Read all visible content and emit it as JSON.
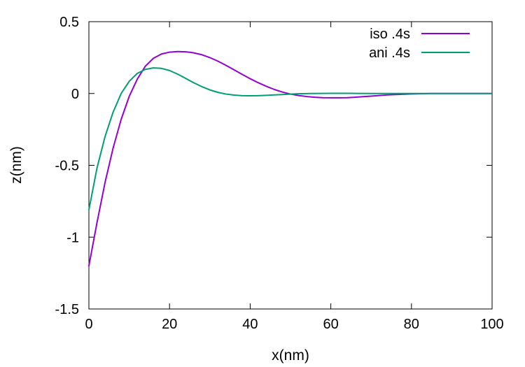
{
  "chart_data": {
    "type": "line",
    "xlabel": "x(nm)",
    "ylabel": "z(nm)",
    "xlim": [
      0,
      100
    ],
    "ylim": [
      -1.5,
      0.5
    ],
    "xticks": [
      0,
      20,
      40,
      60,
      80,
      100
    ],
    "yticks": [
      -1.5,
      -1,
      -0.5,
      0,
      0.5
    ],
    "xtick_labels": [
      "0",
      "20",
      "40",
      "60",
      "80",
      "100"
    ],
    "ytick_labels": [
      "-1.5",
      "-1",
      "-0.5",
      "0",
      "0.5"
    ],
    "grid": false,
    "legend_position": "top-right",
    "series": [
      {
        "name": "iso .4s",
        "color": "#9400d3",
        "x": [
          0,
          2,
          4,
          6,
          8,
          10,
          12,
          14,
          16,
          18,
          20,
          22,
          24,
          25,
          26,
          28,
          30,
          32,
          34,
          36,
          38,
          40,
          42,
          44,
          46,
          48,
          50,
          52,
          54,
          56,
          58,
          60,
          62,
          64,
          66,
          68,
          70,
          72,
          74,
          76,
          80,
          85,
          90,
          100
        ],
        "y": [
          -1.2,
          -0.9,
          -0.62,
          -0.38,
          -0.18,
          -0.02,
          0.1,
          0.19,
          0.245,
          0.275,
          0.288,
          0.292,
          0.29,
          0.287,
          0.283,
          0.27,
          0.25,
          0.225,
          0.196,
          0.165,
          0.133,
          0.103,
          0.075,
          0.05,
          0.028,
          0.01,
          -0.004,
          -0.014,
          -0.021,
          -0.026,
          -0.029,
          -0.03,
          -0.03,
          -0.029,
          -0.026,
          -0.022,
          -0.018,
          -0.014,
          -0.01,
          -0.007,
          -0.003,
          0.0,
          0.0,
          0.0
        ]
      },
      {
        "name": "ani .4s",
        "color": "#009e73",
        "x": [
          0,
          2,
          4,
          6,
          8,
          10,
          12,
          14,
          16,
          18,
          20,
          22,
          24,
          26,
          28,
          30,
          32,
          34,
          36,
          38,
          40,
          42,
          44,
          46,
          48,
          50,
          52,
          55,
          60,
          65,
          70,
          80,
          90,
          100
        ],
        "y": [
          -0.81,
          -0.52,
          -0.3,
          -0.13,
          0.0,
          0.085,
          0.14,
          0.168,
          0.178,
          0.175,
          0.16,
          0.135,
          0.105,
          0.075,
          0.048,
          0.025,
          0.008,
          -0.004,
          -0.011,
          -0.015,
          -0.016,
          -0.015,
          -0.013,
          -0.01,
          -0.007,
          -0.004,
          -0.002,
          0.0,
          0.001,
          0.001,
          0.0,
          0.0,
          0.0,
          0.0
        ]
      }
    ]
  }
}
